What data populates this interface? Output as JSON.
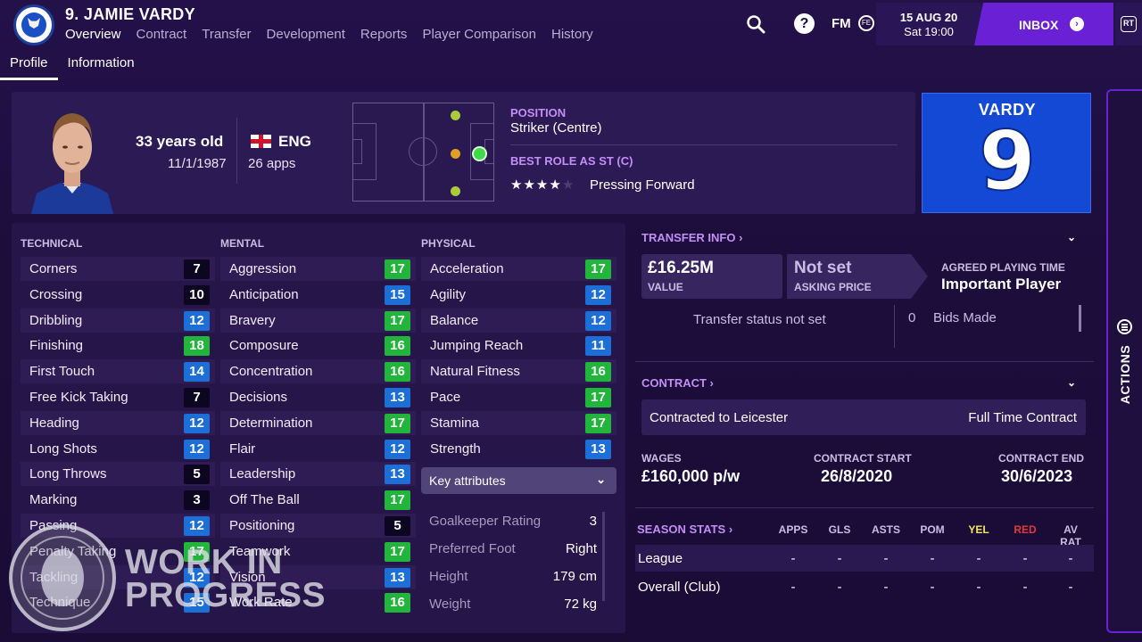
{
  "header": {
    "player_name": "9. JAMIE VARDY",
    "nav": [
      "Overview",
      "Contract",
      "Transfer",
      "Development",
      "Reports",
      "Player Comparison",
      "History"
    ],
    "subnav": [
      "Profile",
      "Information"
    ],
    "fm_label": "FM",
    "fm_badge": "FE",
    "date": "15 AUG 20",
    "time": "Sat 19:00",
    "inbox": "INBOX",
    "rt": "RT"
  },
  "profile": {
    "age": "33 years old",
    "dob": "11/1/1987",
    "nation": "ENG",
    "apps": "26 apps",
    "position_label": "POSITION",
    "position_value": "Striker (Centre)",
    "role_label": "BEST ROLE AS ST (C)",
    "role_stars": 4,
    "role_stars_max": 5,
    "role_value": "Pressing Forward",
    "shirt_name": "VARDY",
    "shirt_number": "9"
  },
  "attributes": {
    "technical_label": "TECHNICAL",
    "mental_label": "MENTAL",
    "physical_label": "PHYSICAL",
    "technical": [
      {
        "name": "Corners",
        "value": "7",
        "tier": "w"
      },
      {
        "name": "Crossing",
        "value": "10",
        "tier": "w"
      },
      {
        "name": "Dribbling",
        "value": "12",
        "tier": "b"
      },
      {
        "name": "Finishing",
        "value": "18",
        "tier": "g"
      },
      {
        "name": "First Touch",
        "value": "14",
        "tier": "b"
      },
      {
        "name": "Free Kick Taking",
        "value": "7",
        "tier": "w"
      },
      {
        "name": "Heading",
        "value": "12",
        "tier": "b"
      },
      {
        "name": "Long Shots",
        "value": "12",
        "tier": "b"
      },
      {
        "name": "Long Throws",
        "value": "5",
        "tier": "w"
      },
      {
        "name": "Marking",
        "value": "3",
        "tier": "w"
      },
      {
        "name": "Passing",
        "value": "12",
        "tier": "b"
      },
      {
        "name": "Penalty Taking",
        "value": "17",
        "tier": "g"
      },
      {
        "name": "Tackling",
        "value": "12",
        "tier": "b"
      },
      {
        "name": "Technique",
        "value": "15",
        "tier": "b"
      }
    ],
    "mental": [
      {
        "name": "Aggression",
        "value": "17",
        "tier": "g"
      },
      {
        "name": "Anticipation",
        "value": "15",
        "tier": "b"
      },
      {
        "name": "Bravery",
        "value": "17",
        "tier": "g"
      },
      {
        "name": "Composure",
        "value": "16",
        "tier": "g"
      },
      {
        "name": "Concentration",
        "value": "16",
        "tier": "g"
      },
      {
        "name": "Decisions",
        "value": "13",
        "tier": "b"
      },
      {
        "name": "Determination",
        "value": "17",
        "tier": "g"
      },
      {
        "name": "Flair",
        "value": "12",
        "tier": "b"
      },
      {
        "name": "Leadership",
        "value": "13",
        "tier": "b"
      },
      {
        "name": "Off The Ball",
        "value": "17",
        "tier": "g"
      },
      {
        "name": "Positioning",
        "value": "5",
        "tier": "w"
      },
      {
        "name": "Teamwork",
        "value": "17",
        "tier": "g"
      },
      {
        "name": "Vision",
        "value": "13",
        "tier": "b"
      },
      {
        "name": "Work Rate",
        "value": "16",
        "tier": "g"
      }
    ],
    "physical": [
      {
        "name": "Acceleration",
        "value": "17",
        "tier": "g"
      },
      {
        "name": "Agility",
        "value": "12",
        "tier": "b"
      },
      {
        "name": "Balance",
        "value": "12",
        "tier": "b"
      },
      {
        "name": "Jumping Reach",
        "value": "11",
        "tier": "b"
      },
      {
        "name": "Natural Fitness",
        "value": "16",
        "tier": "g"
      },
      {
        "name": "Pace",
        "value": "17",
        "tier": "g"
      },
      {
        "name": "Stamina",
        "value": "17",
        "tier": "g"
      },
      {
        "name": "Strength",
        "value": "13",
        "tier": "b"
      }
    ],
    "key_attributes_label": "Key attributes",
    "info_rows": [
      {
        "name": "Goalkeeper Rating",
        "value": "3"
      },
      {
        "name": "Preferred Foot",
        "value": "Right"
      },
      {
        "name": "Height",
        "value": "179 cm"
      },
      {
        "name": "Weight",
        "value": "72 kg"
      }
    ]
  },
  "transfer": {
    "header": "TRANSFER INFO",
    "value": "£16.25M",
    "value_label": "VALUE",
    "asking": "Not set",
    "asking_label": "ASKING PRICE",
    "apt_label": "AGREED PLAYING TIME",
    "apt_value": "Important Player",
    "status": "Transfer status not set",
    "bids_count": "0",
    "bids_label": "Bids Made"
  },
  "contract": {
    "header": "CONTRACT",
    "club": "Contracted to Leicester",
    "type": "Full Time Contract",
    "wages_label": "WAGES",
    "wages": "£160,000 p/w",
    "start_label": "CONTRACT START",
    "start": "26/8/2020",
    "end_label": "CONTRACT END",
    "end": "30/6/2023"
  },
  "season_stats": {
    "header": "SEASON STATS",
    "columns": [
      "APPS",
      "GLS",
      "ASTS",
      "POM",
      "YEL",
      "RED",
      "AV RAT"
    ],
    "rows": [
      {
        "name": "League",
        "values": [
          "-",
          "-",
          "-",
          "-",
          "-",
          "-",
          "-"
        ]
      },
      {
        "name": "Overall (Club)",
        "values": [
          "-",
          "-",
          "-",
          "-",
          "-",
          "-",
          "-"
        ]
      }
    ]
  },
  "actions_label": "ACTIONS",
  "watermark": {
    "line1": "WORK IN",
    "line2": "PROGRESS"
  },
  "colors": {
    "accent": "#6a21d6",
    "label_purple": "#c38ef5",
    "attr_green": "#22b53b",
    "attr_blue": "#1c6fd6",
    "shirt_blue": "#1449d6"
  }
}
